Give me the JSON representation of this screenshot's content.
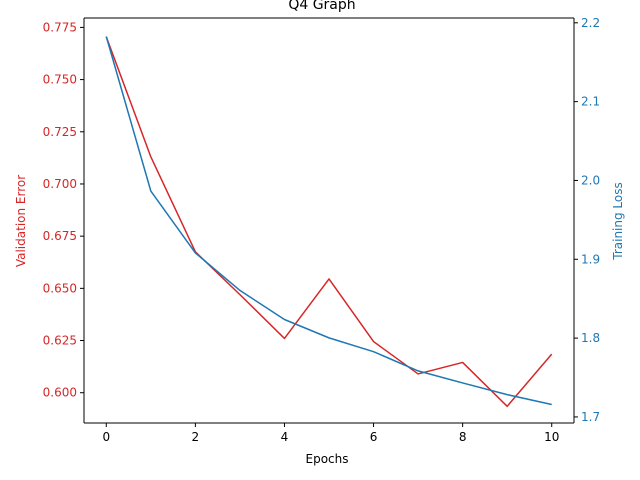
{
  "chart_data": {
    "type": "line",
    "title": "Q4 Graph",
    "xlabel": "Epochs",
    "x": [
      0,
      1,
      2,
      3,
      4,
      5,
      6,
      7,
      8,
      9,
      10
    ],
    "x_ticks": [
      0,
      2,
      4,
      6,
      8,
      10
    ],
    "xlim": [
      -0.5,
      10.5
    ],
    "left_axis": {
      "label": "Validation Error",
      "color": "#d62728",
      "ylim": [
        0.5855,
        0.7795
      ],
      "ticks": [
        "0.600",
        "0.625",
        "0.650",
        "0.675",
        "0.700",
        "0.725",
        "0.750",
        "0.775"
      ]
    },
    "right_axis": {
      "label": "Training Loss",
      "color": "#1f77b4",
      "ylim": [
        1.6923,
        2.2061
      ],
      "ticks": [
        "1.7",
        "1.8",
        "1.9",
        "2.0",
        "2.1",
        "2.2"
      ]
    },
    "series": [
      {
        "axis": "left",
        "color": "#d62728",
        "values": [
          0.7705,
          0.713,
          0.6675,
          0.647,
          0.626,
          0.6545,
          0.6245,
          0.609,
          0.6145,
          0.5935,
          0.6185
        ]
      },
      {
        "axis": "right",
        "color": "#1f77b4",
        "values": [
          2.1826,
          1.9866,
          1.9081,
          1.8605,
          1.8236,
          1.8003,
          1.7828,
          1.7584,
          1.7431,
          1.7283,
          1.7158
        ]
      }
    ],
    "grid": false,
    "legend": "none"
  }
}
